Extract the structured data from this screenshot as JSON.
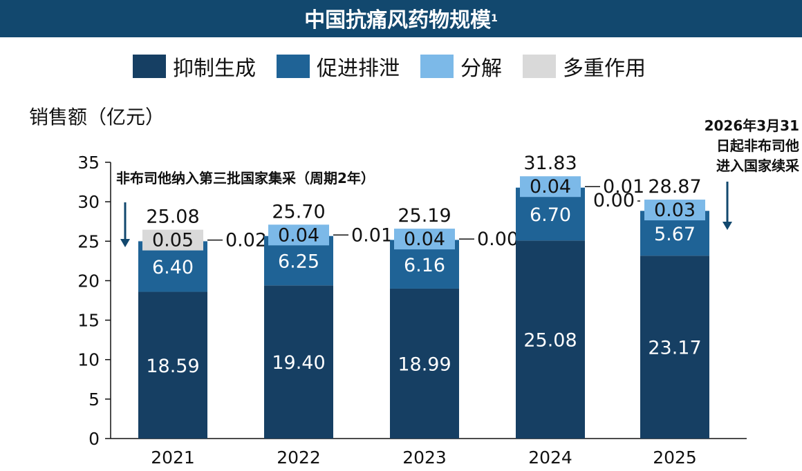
{
  "title": "中国抗痛风药物规模",
  "title_sup": "1",
  "colors": {
    "title_bg": "#12486e",
    "inhibit": "#163f63",
    "excrete": "#1f6396",
    "decompose": "#7cb9e8",
    "multi": "#d9d9d9"
  },
  "annotations": {
    "left": "非布司他纳入第三批国家集采（周期2年）",
    "right_line1": "2026年3月31",
    "right_line2": "日起非布司他",
    "right_line3": "进入国家续采"
  },
  "chart_data": {
    "type": "bar",
    "stacked": true,
    "categories": [
      "2021",
      "2022",
      "2023",
      "2024",
      "2025"
    ],
    "series": [
      {
        "name": "抑制生成",
        "values": [
          18.59,
          19.4,
          18.99,
          25.08,
          23.17
        ],
        "color": "#163f63"
      },
      {
        "name": "促进排泄",
        "values": [
          6.4,
          6.25,
          6.16,
          6.7,
          5.67
        ],
        "color": "#1f6396"
      },
      {
        "name": "分解",
        "values": [
          0.02,
          0.04,
          0.04,
          0.04,
          0.03
        ],
        "color": "#7cb9e8"
      },
      {
        "name": "多重作用",
        "values": [
          0.05,
          0.01,
          0.0,
          0.01,
          0.0
        ],
        "color": "#d9d9d9"
      }
    ],
    "segment_labels": [
      [
        "18.59",
        "6.40",
        "0.02",
        "0.05"
      ],
      [
        "19.40",
        "6.25",
        "0.04",
        "0.01"
      ],
      [
        "18.99",
        "6.16",
        "0.04",
        "0.00"
      ],
      [
        "25.08",
        "6.70",
        "0.04",
        "0.01"
      ],
      [
        "23.17",
        "5.67",
        "0.03",
        "0.00"
      ]
    ],
    "totals": [
      "25.08",
      "25.70",
      "25.19",
      "31.83",
      "28.87"
    ],
    "ylabel": "销售额（亿元）",
    "ylim": [
      0,
      35
    ],
    "yticks": [
      "0",
      "5",
      "10",
      "15",
      "20",
      "25",
      "30",
      "35"
    ],
    "grid": false,
    "legend": "top"
  }
}
